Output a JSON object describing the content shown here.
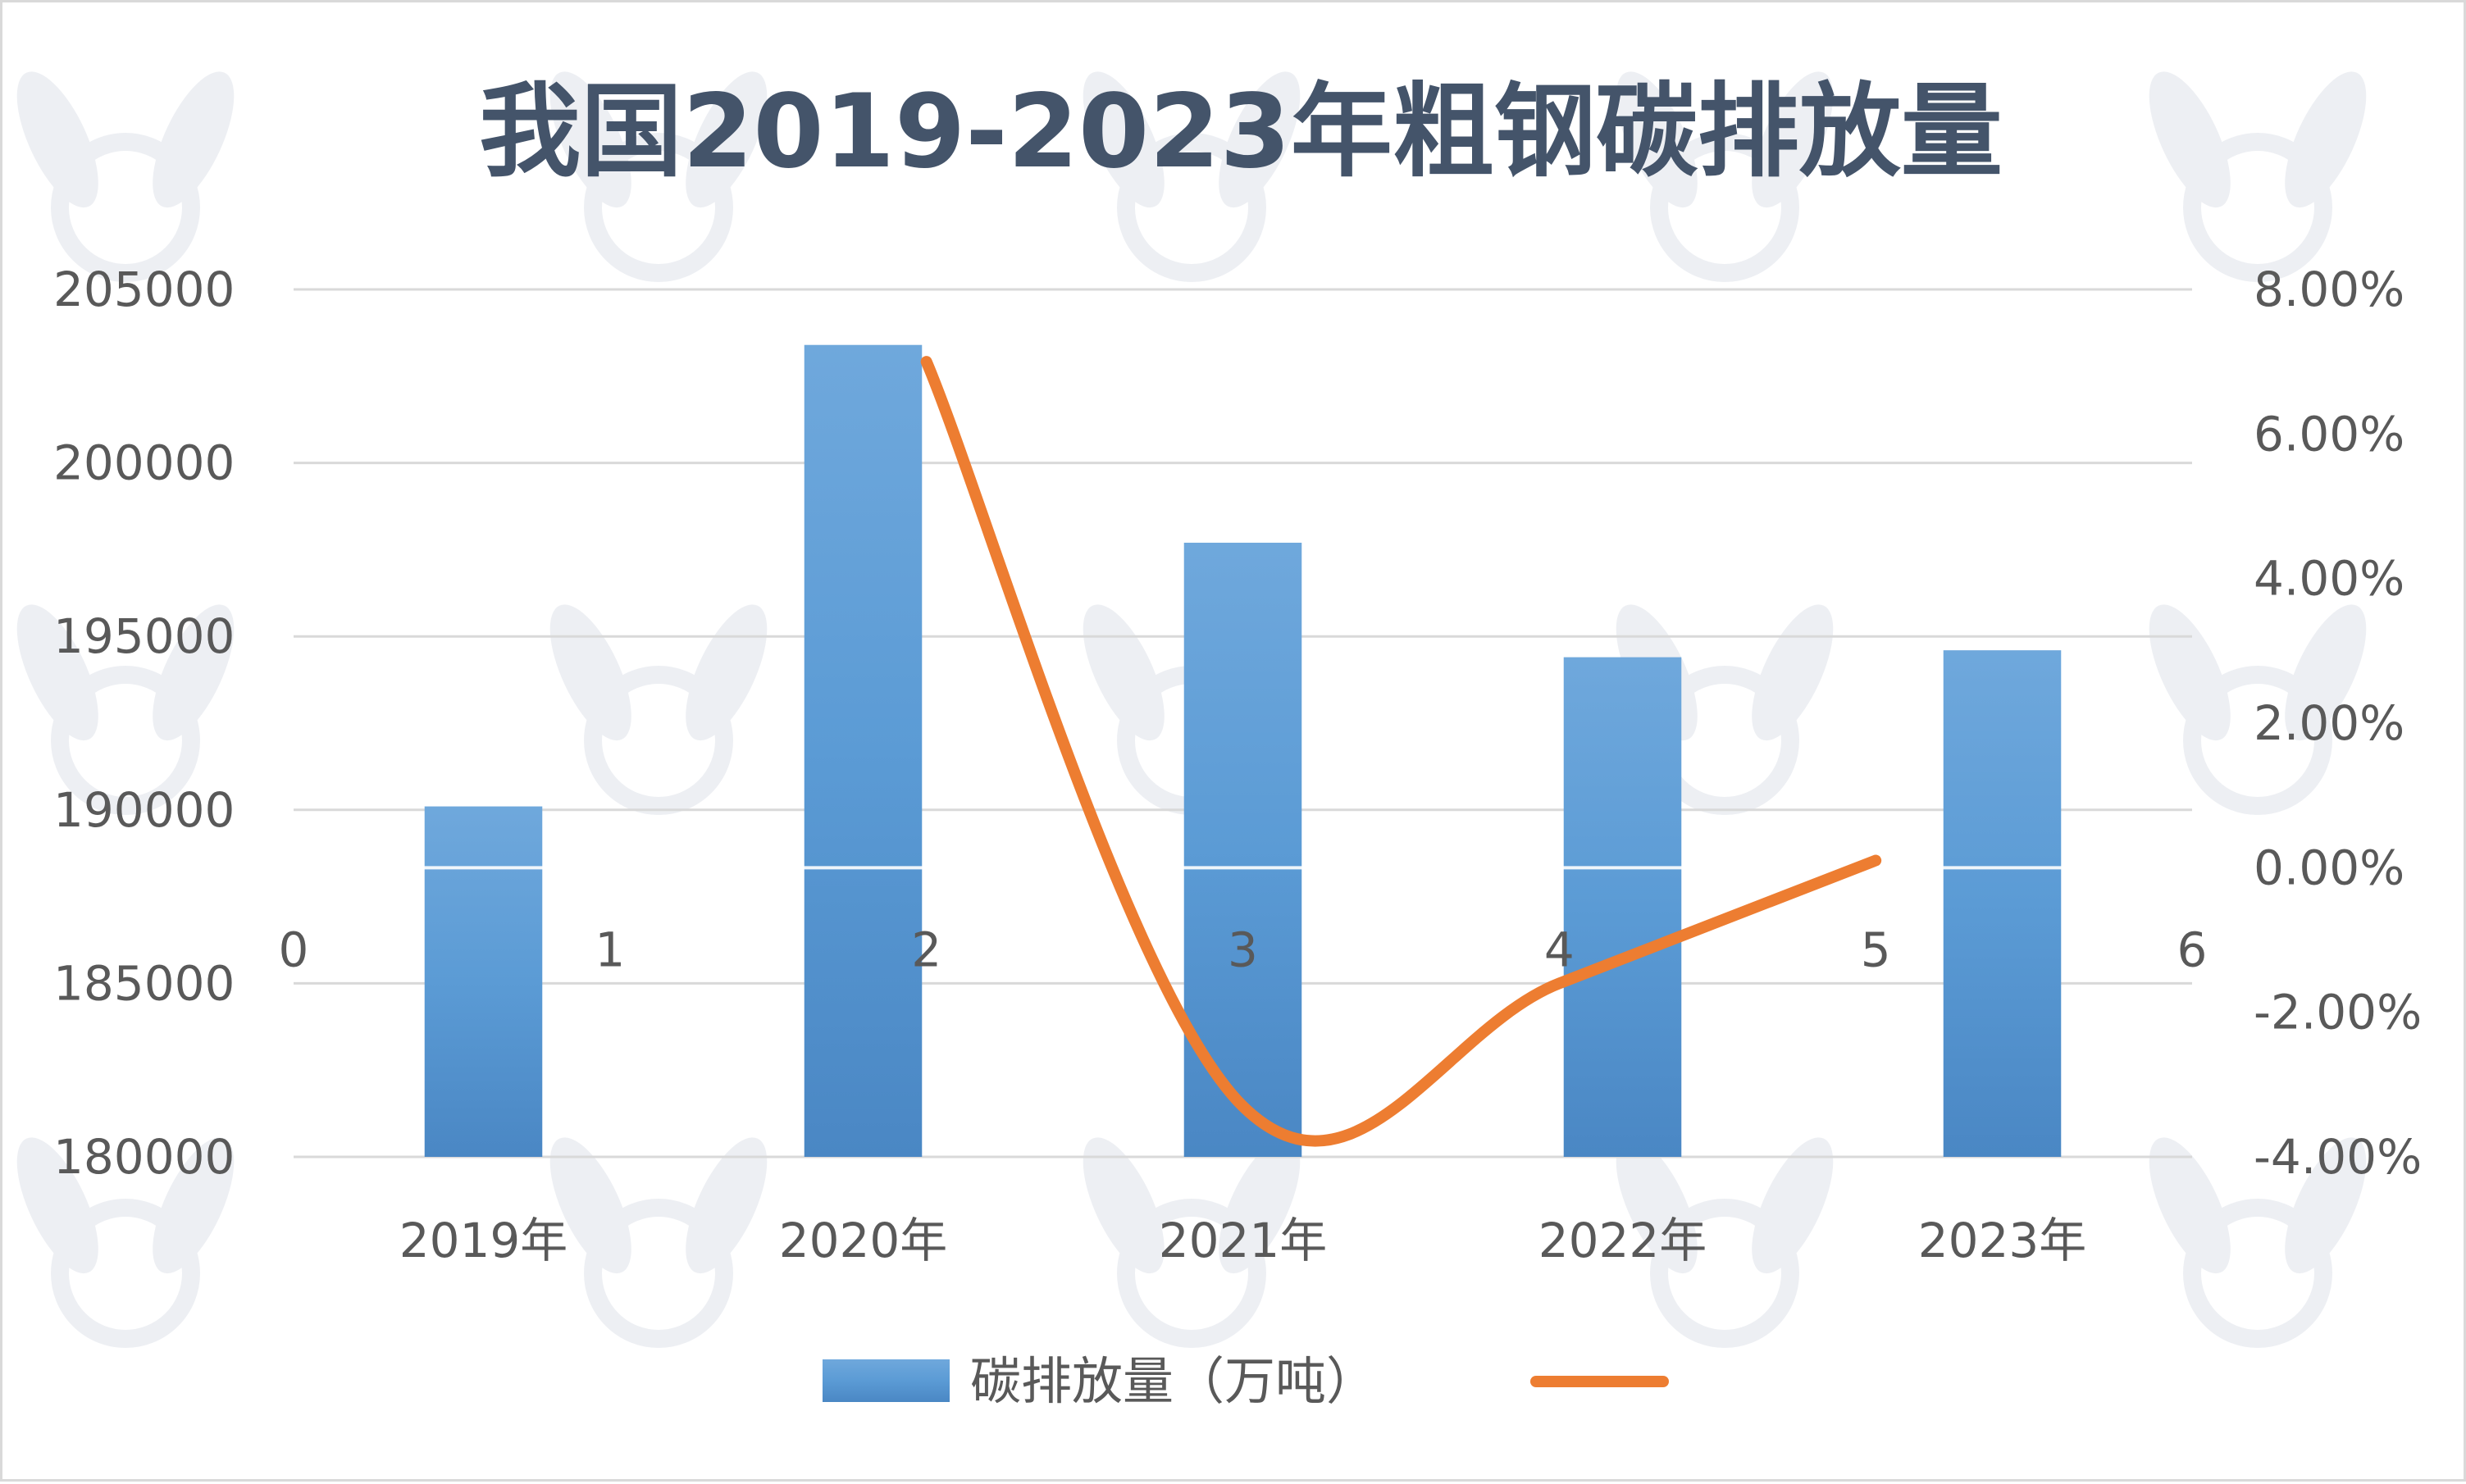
{
  "chart_data": {
    "type": "bar",
    "title": "我国2019-2023年粗钢碳排放量",
    "categories": [
      "2019年",
      "2020年",
      "2021年",
      "2022年",
      "2023年"
    ],
    "series": [
      {
        "name": "碳排放量（万吨）",
        "type": "bar",
        "axis": "left",
        "color": "#5b9bd5",
        "values": [
          190100,
          203400,
          197700,
          194400,
          194600
        ]
      },
      {
        "name": "",
        "type": "line",
        "axis": "right",
        "color": "#ed7d31",
        "x": [
          2,
          3,
          4,
          5
        ],
        "values": [
          0.07,
          -0.033,
          -0.016,
          0.001
        ]
      }
    ],
    "y_left": {
      "ylim": [
        180000,
        205000
      ],
      "ticks": [
        "180000",
        "185000",
        "190000",
        "195000",
        "200000",
        "205000"
      ]
    },
    "y_right": {
      "ylim": [
        -0.04,
        0.08
      ],
      "ticks": [
        "-4.00%",
        "-2.00%",
        "0.00%",
        "2.00%",
        "4.00%",
        "6.00%",
        "8.00%"
      ]
    },
    "x_secondary": {
      "range": [
        0,
        6
      ],
      "ticks": [
        "0",
        "1",
        "2",
        "3",
        "4",
        "5",
        "6"
      ]
    },
    "grid": true,
    "legend": {
      "position": "bottom",
      "items": [
        "碳排放量（万吨）",
        ""
      ]
    }
  }
}
